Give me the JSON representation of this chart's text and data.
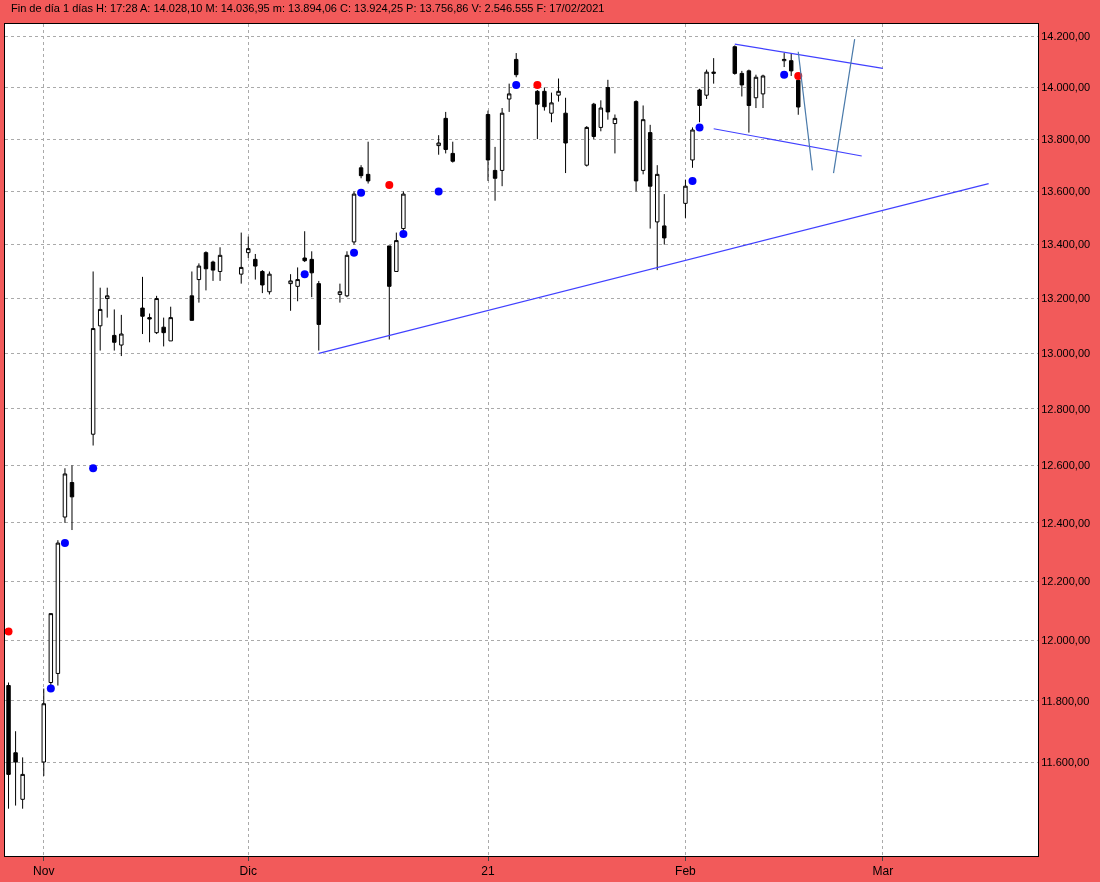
{
  "chart_data": {
    "type": "candlestick",
    "title": "Fin de día 1 días H: 17:28 A: 14.028,10 M: 14.036,95 m: 13.894,06 C: 13.924,25 P: 13.756,86 V: 2.546.555 F: 17/02/2021",
    "x": [
      "2020-10-28",
      "2020-10-29",
      "2020-10-30",
      "2020-11-02",
      "2020-11-03",
      "2020-11-04",
      "2020-11-05",
      "2020-11-06",
      "2020-11-09",
      "2020-11-10",
      "2020-11-11",
      "2020-11-12",
      "2020-11-13",
      "2020-11-16",
      "2020-11-17",
      "2020-11-18",
      "2020-11-19",
      "2020-11-20",
      "2020-11-23",
      "2020-11-24",
      "2020-11-25",
      "2020-11-26",
      "2020-11-27",
      "2020-11-30",
      "2020-12-01",
      "2020-12-02",
      "2020-12-03",
      "2020-12-04",
      "2020-12-07",
      "2020-12-08",
      "2020-12-09",
      "2020-12-10",
      "2020-12-11",
      "2020-12-14",
      "2020-12-15",
      "2020-12-16",
      "2020-12-17",
      "2020-12-18",
      "2020-12-21",
      "2020-12-22",
      "2020-12-23",
      "2020-12-28",
      "2020-12-29",
      "2020-12-30",
      "2021-01-04",
      "2021-01-05",
      "2021-01-06",
      "2021-01-07",
      "2021-01-08",
      "2021-01-11",
      "2021-01-12",
      "2021-01-13",
      "2021-01-14",
      "2021-01-15",
      "2021-01-18",
      "2021-01-19",
      "2021-01-20",
      "2021-01-21",
      "2021-01-22",
      "2021-01-25",
      "2021-01-26",
      "2021-01-27",
      "2021-01-28",
      "2021-01-29",
      "2021-02-01",
      "2021-02-02",
      "2021-02-03",
      "2021-02-04",
      "2021-02-05",
      "2021-02-08",
      "2021-02-09",
      "2021-02-10",
      "2021-02-11",
      "2021-02-12",
      "2021-02-15",
      "2021-02-16",
      "2021-02-17"
    ],
    "ohlc": [
      [
        11850,
        11860,
        11450,
        11560
      ],
      [
        11630,
        11700,
        11460,
        11600
      ],
      [
        11480,
        11615,
        11450,
        11560
      ],
      [
        11600,
        11840,
        11555,
        11790
      ],
      [
        11860,
        12090,
        11850,
        12090
      ],
      [
        11890,
        12340,
        11850,
        12330
      ],
      [
        12420,
        12590,
        12400,
        12570
      ],
      [
        12540,
        12600,
        12375,
        12490
      ],
      [
        12710,
        13300,
        12670,
        13090
      ],
      [
        13100,
        13240,
        13010,
        13160
      ],
      [
        13200,
        13240,
        13130,
        13210
      ],
      [
        13065,
        13160,
        13010,
        13040
      ],
      [
        13030,
        13140,
        12990,
        13070
      ],
      [
        13165,
        13280,
        13070,
        13135
      ],
      [
        13130,
        13145,
        13040,
        13125
      ],
      [
        13075,
        13210,
        13070,
        13200
      ],
      [
        13095,
        13130,
        13025,
        13075
      ],
      [
        13045,
        13170,
        13045,
        13130
      ],
      [
        13210,
        13300,
        13120,
        13120
      ],
      [
        13270,
        13330,
        13185,
        13320
      ],
      [
        13370,
        13375,
        13230,
        13310
      ],
      [
        13335,
        13340,
        13265,
        13305
      ],
      [
        13300,
        13390,
        13265,
        13360
      ],
      [
        13290,
        13445,
        13255,
        13315
      ],
      [
        13370,
        13430,
        13350,
        13385
      ],
      [
        13345,
        13365,
        13270,
        13320
      ],
      [
        13300,
        13305,
        13220,
        13250
      ],
      [
        13225,
        13300,
        13215,
        13290
      ],
      [
        13255,
        13290,
        13155,
        13265
      ],
      [
        13245,
        13315,
        13190,
        13270
      ],
      [
        13350,
        13450,
        13335,
        13340
      ],
      [
        13345,
        13375,
        13205,
        13295
      ],
      [
        13255,
        13265,
        13010,
        13105
      ],
      [
        13215,
        13255,
        13185,
        13225
      ],
      [
        13210,
        13375,
        13205,
        13360
      ],
      [
        13410,
        13600,
        13400,
        13590
      ],
      [
        13690,
        13700,
        13650,
        13660
      ],
      [
        13665,
        13790,
        13630,
        13640
      ],
      [
        13395,
        13395,
        13050,
        13245
      ],
      [
        13300,
        13445,
        13300,
        13415
      ],
      [
        13460,
        13600,
        13450,
        13590
      ],
      [
        13775,
        13815,
        13740,
        13785
      ],
      [
        13880,
        13905,
        13745,
        13760
      ],
      [
        13745,
        13790,
        13710,
        13715
      ],
      [
        13895,
        13910,
        13640,
        13720
      ],
      [
        13680,
        13770,
        13565,
        13650
      ],
      [
        13680,
        13920,
        13620,
        13900
      ],
      [
        13955,
        14015,
        13905,
        13975
      ],
      [
        14110,
        14135,
        14040,
        14050
      ],
      [
        13985,
        13990,
        13800,
        13935
      ],
      [
        13985,
        14000,
        13910,
        13925
      ],
      [
        13900,
        13980,
        13865,
        13940
      ],
      [
        13970,
        14035,
        13945,
        13985
      ],
      [
        13900,
        13960,
        13670,
        13785
      ],
      [
        13700,
        13850,
        13695,
        13845
      ],
      [
        13935,
        13940,
        13800,
        13810
      ],
      [
        13845,
        13950,
        13830,
        13920
      ],
      [
        14000,
        14030,
        13875,
        13905
      ],
      [
        13860,
        13895,
        13745,
        13880
      ],
      [
        13945,
        13950,
        13600,
        13640
      ],
      [
        13680,
        13930,
        13665,
        13875
      ],
      [
        13825,
        13855,
        13460,
        13620
      ],
      [
        13485,
        13700,
        13305,
        13665
      ],
      [
        13470,
        13590,
        13400,
        13425
      ],
      [
        13555,
        13645,
        13500,
        13620
      ],
      [
        13720,
        13845,
        13690,
        13835
      ],
      [
        13990,
        13995,
        13865,
        13930
      ],
      [
        13970,
        14070,
        13955,
        14060
      ],
      [
        14055,
        14115,
        14015,
        14060
      ],
      [
        14160,
        14165,
        14050,
        14055
      ],
      [
        14055,
        14065,
        13965,
        14010
      ],
      [
        14065,
        14070,
        13825,
        13930
      ],
      [
        13960,
        14050,
        13920,
        14040
      ],
      [
        13975,
        14050,
        13920,
        14045
      ],
      [
        14105,
        14135,
        14080,
        14110
      ],
      [
        14105,
        14135,
        14045,
        14065
      ],
      [
        14028,
        14037,
        13894,
        13924
      ]
    ],
    "series": [
      {
        "type": "scatter",
        "marker": "circle",
        "x": [
          "2020-10-28",
          "2020-11-03",
          "2020-11-05",
          "2020-11-09",
          "2020-12-09",
          "2020-12-16",
          "2020-12-17",
          "2020-12-21",
          "2020-12-23",
          "2020-12-28",
          "2021-01-08",
          "2021-01-11",
          "2021-02-02",
          "2021-02-03",
          "2021-02-15",
          "2021-02-17"
        ],
        "values": [
          12030,
          11840,
          12330,
          12590,
          13290,
          13370,
          13595,
          13625,
          13440,
          13600,
          14010,
          14010,
          13640,
          13845,
          14050,
          14045
        ],
        "colors": [
          "#ff0000",
          "#0000ff",
          "#0000ff",
          "#0000ff",
          "#0000ff",
          "#0000ff",
          "#0000ff",
          "#ff0000",
          "#0000ff",
          "#0000ff",
          "#0000ff",
          "#ff0000",
          "#0000ff",
          "#0000ff",
          "#0000ff",
          "#ff0000"
        ]
      },
      {
        "type": "line",
        "color": "#4040ff",
        "x": [
          "2020-12-11",
          "2021-03-16"
        ],
        "values": [
          13000,
          13630
        ]
      },
      {
        "type": "line",
        "color": "#4040ff",
        "x": [
          "2021-02-08",
          "2021-03-01"
        ],
        "values": [
          14170,
          14075
        ]
      },
      {
        "type": "line",
        "color": "#4040ff",
        "x": [
          "2021-02-05",
          "2021-02-26"
        ],
        "values": [
          13840,
          13735
        ]
      },
      {
        "type": "line",
        "color": "#4a7aaa",
        "x": [
          "2021-02-17",
          "2021-02-19"
        ],
        "values": [
          14140,
          13680
        ]
      },
      {
        "type": "line",
        "color": "#4a7aaa",
        "x": [
          "2021-02-22",
          "2021-02-25"
        ],
        "values": [
          13670,
          14190
        ]
      }
    ],
    "log": true,
    "xlim": [
      "2020-10-27T12:00",
      "2021-03-23"
    ],
    "xticks": [
      {
        "value": "2020-11-02",
        "label": "Nov"
      },
      {
        "value": "2020-12-01",
        "label": "Dic"
      },
      {
        "value": "2021-01-04",
        "label": "21"
      },
      {
        "value": "2021-02-01",
        "label": "Feb"
      },
      {
        "value": "2021-03-01",
        "label": "Mar"
      }
    ],
    "ylim": [
      11300,
      14250
    ],
    "yticks": [
      {
        "value": 11600,
        "label": "11.600,00"
      },
      {
        "value": 11800,
        "label": "11.800,00"
      },
      {
        "value": 12000,
        "label": "12.000,00"
      },
      {
        "value": 12200,
        "label": "12.200,00"
      },
      {
        "value": 12400,
        "label": "12.400,00"
      },
      {
        "value": 12600,
        "label": "12.600,00"
      },
      {
        "value": 12800,
        "label": "12.800,00"
      },
      {
        "value": 13000,
        "label": "13.000,00"
      },
      {
        "value": 13200,
        "label": "13.200,00"
      },
      {
        "value": 13400,
        "label": "13.400,00"
      },
      {
        "value": 13600,
        "label": "13.600,00"
      },
      {
        "value": 13800,
        "label": "13.800,00"
      },
      {
        "value": 14000,
        "label": "14.000,00"
      },
      {
        "value": 14200,
        "label": "14.200,00"
      }
    ],
    "grid": true
  }
}
